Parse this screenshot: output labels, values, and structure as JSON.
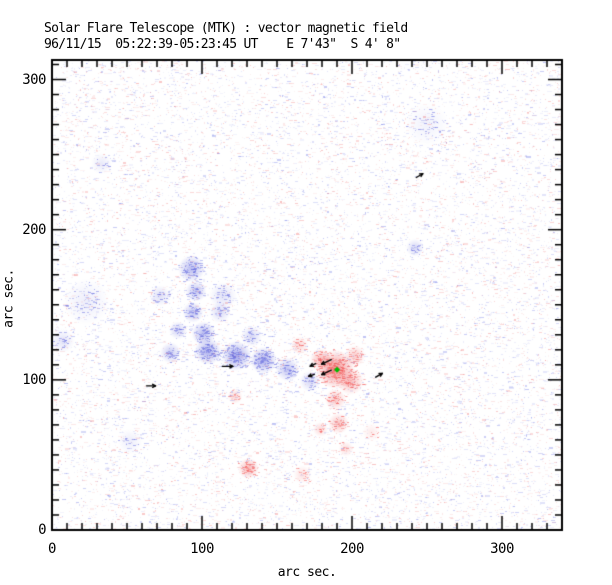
{
  "chart_data": {
    "type": "heatmap",
    "title": "Solar Flare Telescope (MTK) : vector magnetic field",
    "subtitle": "96/11/15  05:22:39-05:23:45 UT    E 7'43\"  S 4' 8\"",
    "xlabel": "arc sec.",
    "ylabel": "arc sec.",
    "units": "arc sec",
    "xlim": [
      0,
      340
    ],
    "ylim": [
      0,
      313
    ],
    "x_ticks": [
      0,
      100,
      200,
      300
    ],
    "y_ticks": [
      0,
      100,
      200,
      300
    ],
    "minor_tick_step": 10,
    "grid": false,
    "colors": {
      "background": "#ffffff",
      "frame": "#000000",
      "negative_polarity": [
        100,
        105,
        222
      ],
      "positive_polarity": [
        242,
        92,
        92
      ],
      "noise_blue": [
        112,
        122,
        230
      ],
      "noise_red": [
        240,
        118,
        118
      ],
      "arrow": "#000000",
      "flare_marker": "#00bb00"
    },
    "noise": {
      "seed": 1234,
      "dash_count": 16000,
      "blue_fraction": 0.56
    },
    "negative_polarity_regions": [
      {
        "x": 93,
        "y": 174,
        "r": 9,
        "strength": 0.5
      },
      {
        "x": 96,
        "y": 159,
        "r": 7,
        "strength": 0.45
      },
      {
        "x": 94,
        "y": 145,
        "r": 7,
        "strength": 0.45
      },
      {
        "x": 101,
        "y": 131,
        "r": 8,
        "strength": 0.5
      },
      {
        "x": 104,
        "y": 119,
        "r": 9,
        "strength": 0.6
      },
      {
        "x": 79,
        "y": 118,
        "r": 7,
        "strength": 0.4
      },
      {
        "x": 84,
        "y": 133,
        "r": 6,
        "strength": 0.35
      },
      {
        "x": 123,
        "y": 116,
        "r": 10,
        "strength": 0.65
      },
      {
        "x": 141,
        "y": 113,
        "r": 9,
        "strength": 0.6
      },
      {
        "x": 157,
        "y": 107,
        "r": 8,
        "strength": 0.45
      },
      {
        "x": 133,
        "y": 129,
        "r": 7,
        "strength": 0.3
      },
      {
        "x": 112,
        "y": 145,
        "r": 7,
        "strength": 0.28
      },
      {
        "x": 114,
        "y": 156,
        "r": 9,
        "strength": 0.22
      },
      {
        "x": 72,
        "y": 156,
        "r": 7,
        "strength": 0.25
      },
      {
        "x": 23,
        "y": 152,
        "r": 15,
        "strength": 0.13
      },
      {
        "x": 7,
        "y": 126,
        "r": 8,
        "strength": 0.2
      },
      {
        "x": 242,
        "y": 188,
        "r": 6,
        "strength": 0.3
      },
      {
        "x": 33,
        "y": 244,
        "r": 7,
        "strength": 0.16
      },
      {
        "x": 172,
        "y": 99,
        "r": 7,
        "strength": 0.3
      },
      {
        "x": 52,
        "y": 59,
        "r": 8,
        "strength": 0.13
      },
      {
        "x": 250,
        "y": 270,
        "r": 14,
        "strength": 0.1
      }
    ],
    "positive_polarity_regions": [
      {
        "x": 189,
        "y": 107,
        "r": 13,
        "strength": 0.75
      },
      {
        "x": 199,
        "y": 99,
        "r": 9,
        "strength": 0.45
      },
      {
        "x": 179,
        "y": 114,
        "r": 7,
        "strength": 0.45
      },
      {
        "x": 202,
        "y": 116,
        "r": 7,
        "strength": 0.35
      },
      {
        "x": 165,
        "y": 123,
        "r": 6,
        "strength": 0.28
      },
      {
        "x": 189,
        "y": 87,
        "r": 7,
        "strength": 0.4
      },
      {
        "x": 191,
        "y": 71,
        "r": 7,
        "strength": 0.4
      },
      {
        "x": 196,
        "y": 54,
        "r": 5,
        "strength": 0.25
      },
      {
        "x": 131,
        "y": 41,
        "r": 7,
        "strength": 0.5
      },
      {
        "x": 122,
        "y": 89,
        "r": 5,
        "strength": 0.3
      },
      {
        "x": 179,
        "y": 67,
        "r": 5,
        "strength": 0.28
      },
      {
        "x": 167,
        "y": 37,
        "r": 6,
        "strength": 0.22
      },
      {
        "x": 213,
        "y": 65,
        "r": 6,
        "strength": 0.15
      }
    ],
    "vector_arrows": [
      {
        "x": 117,
        "y": 109,
        "angle_deg": 0,
        "len": 7
      },
      {
        "x": 66,
        "y": 96,
        "angle_deg": 0,
        "len": 6
      },
      {
        "x": 183,
        "y": 112,
        "angle_deg": 205,
        "len": 7
      },
      {
        "x": 174,
        "y": 110,
        "angle_deg": 205,
        "len": 4
      },
      {
        "x": 183,
        "y": 105,
        "angle_deg": 205,
        "len": 7
      },
      {
        "x": 173,
        "y": 103,
        "angle_deg": 200,
        "len": 4
      },
      {
        "x": 218,
        "y": 103,
        "angle_deg": 30,
        "len": 5
      },
      {
        "x": 245,
        "y": 236,
        "angle_deg": 30,
        "len": 5
      }
    ],
    "flare_marker": {
      "x": 190,
      "y": 106.7
    }
  }
}
